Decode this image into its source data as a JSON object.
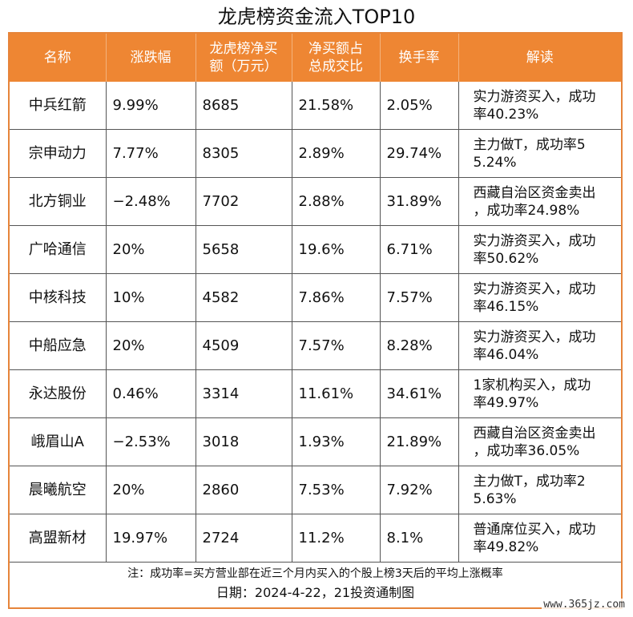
{
  "title": "龙虎榜资金流入TOP10",
  "headers": {
    "name": "名称",
    "change": "涨跌幅",
    "net_buy_1": "龙虎榜净买",
    "net_buy_2": "额（万元）",
    "ratio_1": "净买额占",
    "ratio_2": "总成交比",
    "turnover": "换手率",
    "interpretation": "解读"
  },
  "rows": [
    {
      "name": "中兵红箭",
      "change": "9.99%",
      "net_buy": "8685",
      "ratio": "21.58%",
      "turnover": "2.05%",
      "interp_1": "实力游资买入，成功",
      "interp_2": "率40.23%"
    },
    {
      "name": "宗申动力",
      "change": "7.77%",
      "net_buy": "8305",
      "ratio": "2.89%",
      "turnover": "29.74%",
      "interp_1": "主力做T，成功率5",
      "interp_2": "5.24%"
    },
    {
      "name": "北方铜业",
      "change": "−2.48%",
      "net_buy": "7702",
      "ratio": "2.88%",
      "turnover": "31.89%",
      "interp_1": "西藏自治区资金卖出",
      "interp_2": "，成功率24.98%"
    },
    {
      "name": "广哈通信",
      "change": "20%",
      "net_buy": "5658",
      "ratio": "19.6%",
      "turnover": "6.71%",
      "interp_1": "实力游资买入，成功",
      "interp_2": "率50.62%"
    },
    {
      "name": "中核科技",
      "change": "10%",
      "net_buy": "4582",
      "ratio": "7.86%",
      "turnover": "7.57%",
      "interp_1": "实力游资买入，成功",
      "interp_2": "率46.15%"
    },
    {
      "name": "中船应急",
      "change": "20%",
      "net_buy": "4509",
      "ratio": "7.57%",
      "turnover": "8.28%",
      "interp_1": "实力游资买入，成功",
      "interp_2": "率46.04%"
    },
    {
      "name": "永达股份",
      "change": "0.46%",
      "net_buy": "3314",
      "ratio": "11.61%",
      "turnover": "34.61%",
      "interp_1": "1家机构买入，成功",
      "interp_2": "率49.97%"
    },
    {
      "name": "峨眉山A",
      "change": "−2.53%",
      "net_buy": "3018",
      "ratio": "1.93%",
      "turnover": "21.89%",
      "interp_1": "西藏自治区资金卖出",
      "interp_2": "，成功率36.05%"
    },
    {
      "name": "晨曦航空",
      "change": "20%",
      "net_buy": "2860",
      "ratio": "7.53%",
      "turnover": "7.92%",
      "interp_1": "主力做T，成功率2",
      "interp_2": "5.63%"
    },
    {
      "name": "高盟新材",
      "change": "19.97%",
      "net_buy": "2724",
      "ratio": "11.2%",
      "turnover": "8.1%",
      "interp_1": "普通席位买入，成功",
      "interp_2": "率49.82%"
    }
  ],
  "note": "注：成功率=买方营业部在近三个月内买入的个股上榜3天后的平均上涨概率",
  "date_line": "日期：2024-4-22，21投资通制图",
  "watermark": "www.365jz.com",
  "colors": {
    "header_bg": "#ee8633",
    "border": "#e6843a"
  }
}
